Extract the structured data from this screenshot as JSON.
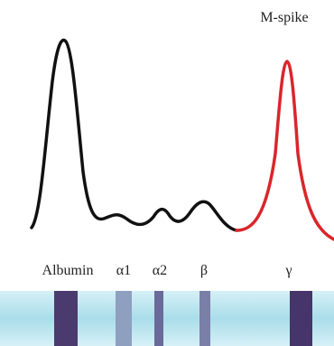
{
  "annotation": "M-spike",
  "bands": [
    "Albumin",
    "α1",
    "α2",
    "β",
    "γ"
  ]
}
